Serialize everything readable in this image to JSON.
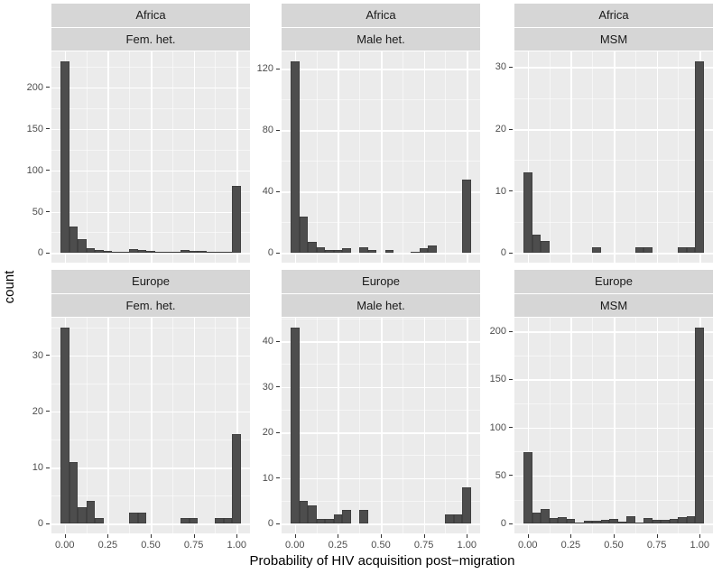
{
  "figure": {
    "x_axis_title": "Probability of HIV acquisition post−migration",
    "y_axis_title": "count"
  },
  "colors": {
    "bar_fill": "#4d4d4d",
    "panel_background": "#ebebeb",
    "strip_background": "#d6d6d6",
    "gridline": "#ffffff",
    "tick_text": "#4d4d4d",
    "axis_title_text": "#000000"
  },
  "chart_data": {
    "type": "bar",
    "subtype": "faceted-histogram",
    "title": "",
    "xlabel": "Probability of HIV acquisition post−migration",
    "ylabel": "count",
    "grid": true,
    "legend": false,
    "facet_rows": [
      "Africa",
      "Europe"
    ],
    "facet_cols": [
      "Fem. het.",
      "Male het.",
      "MSM"
    ],
    "x_ticks": [
      0,
      0.25,
      0.5,
      0.75,
      1
    ],
    "x_tick_labels": [
      "0.00",
      "0.25",
      "0.50",
      "0.75",
      "1.00"
    ],
    "x_display_range": [
      -0.0775,
      1.0775
    ],
    "bin_width": 0.05,
    "bin_centers": [
      0,
      0.05,
      0.1,
      0.15,
      0.2,
      0.25,
      0.3,
      0.35,
      0.4,
      0.45,
      0.5,
      0.55,
      0.6,
      0.65,
      0.7,
      0.75,
      0.8,
      0.85,
      0.9,
      0.95,
      1
    ],
    "facets": [
      {
        "row": "Africa",
        "col": "Fem. het.",
        "y_ticks": [
          0,
          50,
          100,
          150,
          200
        ],
        "values": [
          232,
          32,
          17,
          6,
          4,
          3,
          2,
          2,
          5,
          4,
          3,
          2,
          1,
          2,
          4,
          3,
          3,
          2,
          2,
          2,
          81
        ]
      },
      {
        "row": "Africa",
        "col": "Male het.",
        "y_ticks": [
          0,
          40,
          80,
          120
        ],
        "values": [
          125,
          24,
          7,
          4,
          2,
          2,
          3,
          0,
          4,
          2,
          0,
          2,
          0,
          0,
          1,
          3,
          5,
          0,
          0,
          0,
          48
        ]
      },
      {
        "row": "Africa",
        "col": "MSM",
        "y_ticks": [
          0,
          10,
          20,
          30
        ],
        "values": [
          13,
          3,
          2,
          0,
          0,
          0,
          0,
          0,
          1,
          0,
          0,
          0,
          0,
          1,
          1,
          0,
          0,
          0,
          1,
          1,
          31
        ]
      },
      {
        "row": "Europe",
        "col": "Fem. het.",
        "y_ticks": [
          0,
          10,
          20,
          30
        ],
        "values": [
          35,
          11,
          3,
          4,
          1,
          0,
          0,
          0,
          2,
          2,
          0,
          0,
          0,
          0,
          1,
          1,
          0,
          0,
          1,
          1,
          16
        ]
      },
      {
        "row": "Europe",
        "col": "Male het.",
        "y_ticks": [
          0,
          10,
          20,
          30,
          40
        ],
        "values": [
          43,
          5,
          4,
          1,
          1,
          2,
          3,
          0,
          3,
          0,
          0,
          0,
          0,
          0,
          0,
          0,
          0,
          0,
          2,
          2,
          8
        ]
      },
      {
        "row": "Europe",
        "col": "MSM",
        "y_ticks": [
          0,
          50,
          100,
          150,
          200
        ],
        "values": [
          74,
          11,
          15,
          6,
          7,
          5,
          1,
          3,
          3,
          4,
          5,
          2,
          8,
          1,
          6,
          4,
          4,
          5,
          7,
          8,
          204
        ]
      }
    ]
  }
}
